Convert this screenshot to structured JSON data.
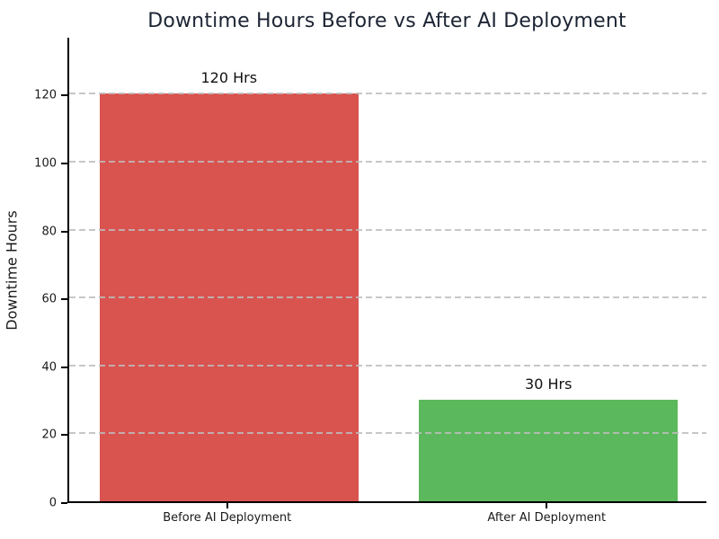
{
  "chart_data": {
    "type": "bar",
    "title": "Downtime Hours Before vs After AI Deployment",
    "xlabel": "",
    "ylabel": "Downtime Hours",
    "categories": [
      "Before AI Deployment",
      "After AI Deployment"
    ],
    "values": [
      120,
      30
    ],
    "bar_labels": [
      "120 Hrs",
      "30 Hrs"
    ],
    "bar_colors": [
      "#d9534f",
      "#5cb85c"
    ],
    "yticks": [
      0,
      20,
      40,
      60,
      80,
      100,
      120
    ],
    "ylim": [
      0,
      137
    ],
    "grid": {
      "axis": "y",
      "style": "dashed",
      "color": "#bdbdbd",
      "drawn_over_bars": true
    },
    "legend_position": "none",
    "title_color": "#1c2433",
    "axis_color": "#000000",
    "background_color": "#ffffff"
  }
}
